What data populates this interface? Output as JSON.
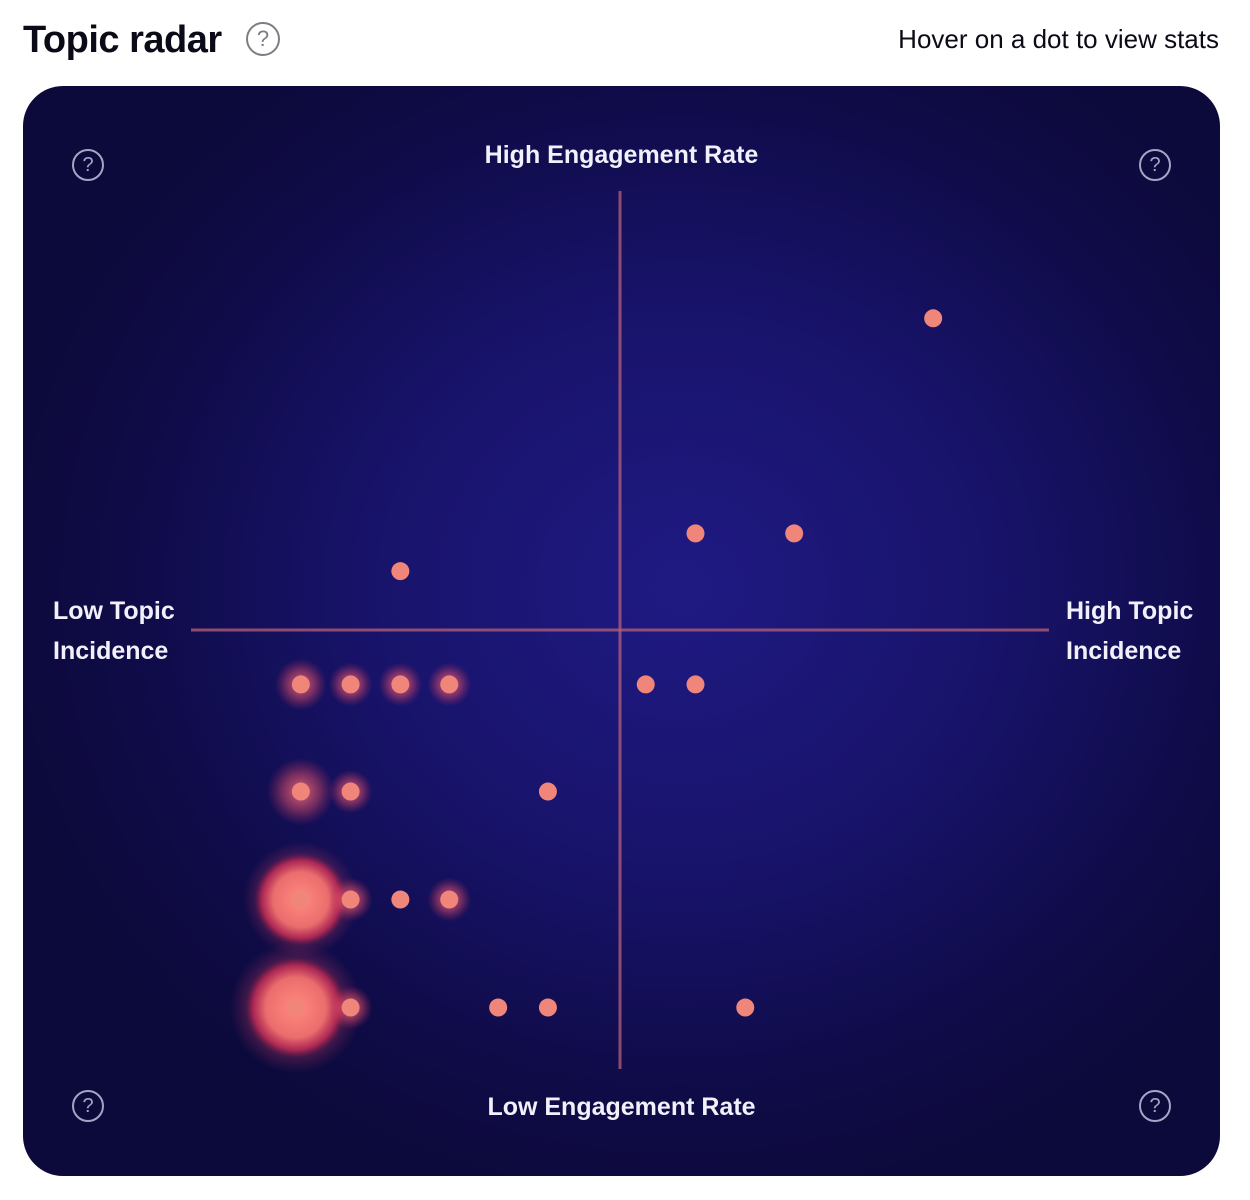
{
  "header": {
    "title": "Topic radar",
    "help_icon": "question-circle-icon",
    "hint": "Hover on a dot to view stats"
  },
  "colors": {
    "panel_background": "#18136a",
    "axis_line": "#b5607a",
    "dot": "#f0857a",
    "glow": "#ff6f6f",
    "label_text": "#f1f0fb"
  },
  "chart_data": {
    "type": "scatter",
    "title": "Topic radar",
    "xlabel_low": "Low Topic\nIncidence",
    "xlabel_high": "High Topic\nIncidence",
    "ylabel_high": "High Engagement Rate",
    "ylabel_low": "Low Engagement Rate",
    "quadrant_help_icons": [
      "question-circle-icon",
      "question-circle-icon",
      "question-circle-icon",
      "question-circle-icon"
    ],
    "xlim": [
      0,
      1
    ],
    "ylim": [
      0,
      1
    ],
    "x_divider": 0.5,
    "y_divider": 0.5,
    "points": [
      {
        "x": 0.865,
        "y": 0.855,
        "size": 1
      },
      {
        "x": 0.588,
        "y": 0.61,
        "size": 1
      },
      {
        "x": 0.703,
        "y": 0.61,
        "size": 1
      },
      {
        "x": 0.244,
        "y": 0.567,
        "size": 1
      },
      {
        "x": 0.128,
        "y": 0.438,
        "size": 2
      },
      {
        "x": 0.186,
        "y": 0.438,
        "size": 1.5
      },
      {
        "x": 0.244,
        "y": 0.438,
        "size": 1.5
      },
      {
        "x": 0.301,
        "y": 0.438,
        "size": 1.5
      },
      {
        "x": 0.53,
        "y": 0.438,
        "size": 1
      },
      {
        "x": 0.588,
        "y": 0.438,
        "size": 1
      },
      {
        "x": 0.128,
        "y": 0.316,
        "size": 3
      },
      {
        "x": 0.186,
        "y": 0.316,
        "size": 1.5
      },
      {
        "x": 0.416,
        "y": 0.316,
        "size": 1
      },
      {
        "x": 0.128,
        "y": 0.193,
        "size": 6
      },
      {
        "x": 0.186,
        "y": 0.193,
        "size": 1.5
      },
      {
        "x": 0.244,
        "y": 0.193,
        "size": 1
      },
      {
        "x": 0.301,
        "y": 0.193,
        "size": 1.5
      },
      {
        "x": 0.122,
        "y": 0.07,
        "size": 7
      },
      {
        "x": 0.186,
        "y": 0.07,
        "size": 1.5
      },
      {
        "x": 0.358,
        "y": 0.07,
        "size": 1
      },
      {
        "x": 0.416,
        "y": 0.07,
        "size": 1
      },
      {
        "x": 0.646,
        "y": 0.07,
        "size": 1
      }
    ]
  }
}
